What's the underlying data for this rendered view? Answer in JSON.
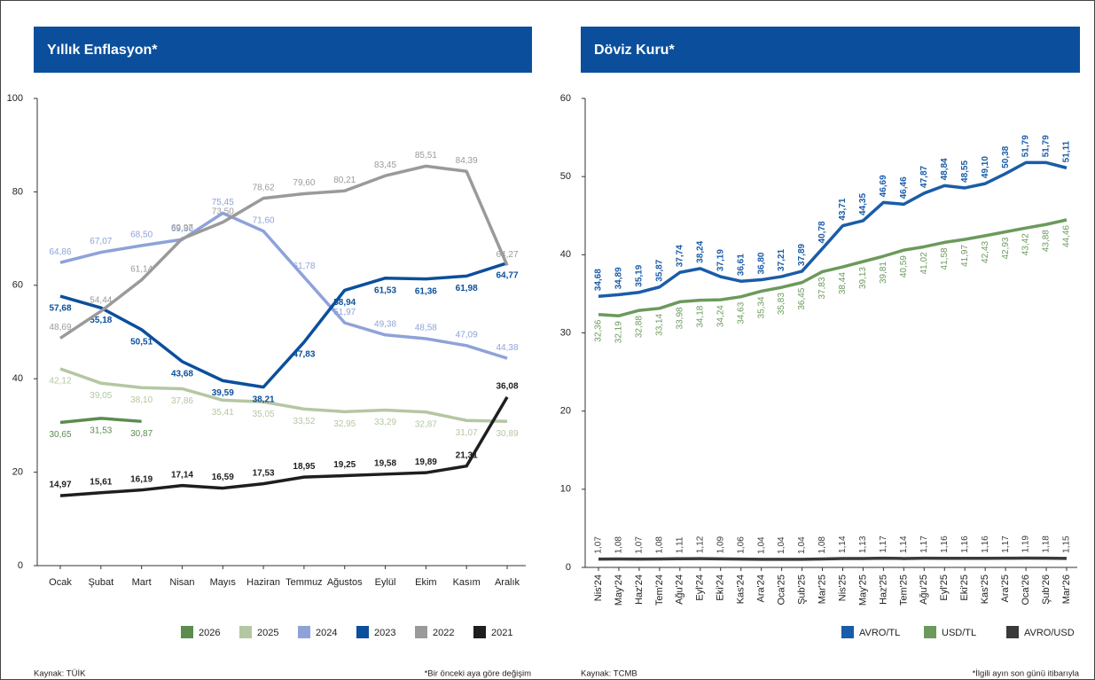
{
  "chart_data": [
    {
      "type": "line",
      "title": "Yıllık Enflasyon*",
      "categories": [
        "Ocak",
        "Şubat",
        "Mart",
        "Nisan",
        "Mayıs",
        "Haziran",
        "Temmuz",
        "Ağustos",
        "Eylül",
        "Ekim",
        "Kasım",
        "Aralık"
      ],
      "ylim": [
        0,
        100
      ],
      "yticks": [
        0,
        20,
        40,
        60,
        80,
        100
      ],
      "series": [
        {
          "name": "2026",
          "color": "#5b8c4e",
          "values": [
            30.65,
            31.53,
            30.87,
            null,
            null,
            null,
            null,
            null,
            null,
            null,
            null,
            null
          ],
          "value_labels": [
            "30,65",
            "31,53",
            "30,87",
            null,
            null,
            null,
            null,
            null,
            null,
            null,
            null,
            null
          ]
        },
        {
          "name": "2025",
          "color": "#b4c7a2",
          "values": [
            42.12,
            39.05,
            38.1,
            37.86,
            35.41,
            35.05,
            33.52,
            32.95,
            33.29,
            32.87,
            31.07,
            30.89
          ],
          "value_labels": [
            "42,12",
            "39,05",
            "38,10",
            "37,86",
            "35,41",
            "35,05",
            "33,52",
            "32,95",
            "33,29",
            "32,87",
            "31,07",
            "30,89"
          ]
        },
        {
          "name": "2024",
          "color": "#8ea2da",
          "values": [
            64.86,
            67.07,
            68.5,
            69.8,
            75.45,
            71.6,
            61.78,
            51.97,
            49.38,
            48.58,
            47.09,
            44.38
          ],
          "value_labels": [
            "64,86",
            "67,07",
            "68,50",
            "69,80",
            "75,45",
            "71,60",
            "61,78",
            "51,97",
            "49,38",
            "48,58",
            "47,09",
            "44,38"
          ]
        },
        {
          "name": "2023",
          "color": "#0b4f9c",
          "values": [
            57.68,
            55.18,
            50.51,
            43.68,
            39.59,
            38.21,
            47.83,
            58.94,
            61.53,
            61.36,
            61.98,
            64.77
          ],
          "value_labels": [
            "57,68",
            "55,18",
            "50,51",
            "43,68",
            "39,59",
            "38,21",
            "47,83",
            "58,94",
            "61,53",
            "61,36",
            "61,98",
            "64,77"
          ]
        },
        {
          "name": "2022",
          "color": "#9a9a9a",
          "values": [
            48.69,
            54.44,
            61.14,
            69.97,
            73.5,
            78.62,
            79.6,
            80.21,
            83.45,
            85.51,
            84.39,
            64.27
          ],
          "value_labels": [
            "48,69",
            "54,44",
            "61,14",
            "69,97",
            "73,50",
            "78,62",
            "79,60",
            "80,21",
            "83,45",
            "85,51",
            "84,39",
            "64,27"
          ]
        },
        {
          "name": "2021",
          "color": "#1e1e1e",
          "values": [
            14.97,
            15.61,
            16.19,
            17.14,
            16.59,
            17.53,
            18.95,
            19.25,
            19.58,
            19.89,
            21.31,
            36.08
          ],
          "value_labels": [
            "14,97",
            "15,61",
            "16,19",
            "17,14",
            "16,59",
            "17,53",
            "18,95",
            "19,25",
            "19,58",
            "19,89",
            "21,31",
            "36,08"
          ]
        }
      ],
      "source": "Kaynak: TÜİK",
      "footnote": "*Bir önceki aya göre değişim"
    },
    {
      "type": "line",
      "title": "Döviz Kuru*",
      "categories": [
        "Nis'24",
        "May'24",
        "Haz'24",
        "Tem'24",
        "Ağu'24",
        "Eyl'24",
        "Eki'24",
        "Kas'24",
        "Ara'24",
        "Oca'25",
        "Şub'25",
        "Mar'25",
        "Nis'25",
        "May'25",
        "Haz'25",
        "Tem'25",
        "Ağu'25",
        "Eyl'25",
        "Eki'25",
        "Kas'25",
        "Ara'25",
        "Oca'26",
        "Şub'26",
        "Mar'26"
      ],
      "ylim": [
        0,
        60
      ],
      "yticks": [
        0,
        10,
        20,
        30,
        40,
        50,
        60
      ],
      "series": [
        {
          "name": "AVRO/TL",
          "color": "#1a5ca8",
          "values": [
            34.68,
            34.89,
            35.19,
            35.87,
            37.74,
            38.24,
            37.19,
            36.61,
            36.8,
            37.21,
            37.89,
            40.78,
            43.71,
            44.35,
            46.69,
            46.46,
            47.87,
            48.84,
            48.55,
            49.1,
            50.38,
            51.79,
            51.79,
            51.11
          ],
          "value_labels": [
            "34,68",
            "34,89",
            "35,19",
            "35,87",
            "37,74",
            "38,24",
            "37,19",
            "36,61",
            "36,80",
            "37,21",
            "37,89",
            "40,78",
            "43,71",
            "44,35",
            "46,69",
            "46,46",
            "47,87",
            "48,84",
            "48,55",
            "49,10",
            "50,38",
            "51,79",
            "51,79",
            "51,11"
          ]
        },
        {
          "name": "USD/TL",
          "color": "#6b9a5b",
          "values": [
            32.36,
            32.19,
            32.88,
            33.14,
            33.98,
            34.18,
            34.24,
            34.63,
            35.34,
            35.83,
            36.45,
            37.83,
            38.44,
            39.13,
            39.81,
            40.59,
            41.02,
            41.58,
            41.97,
            42.43,
            42.93,
            43.42,
            43.88,
            44.46
          ],
          "value_labels": [
            "32,36",
            "32,19",
            "32,88",
            "33,14",
            "33,98",
            "34,18",
            "34,24",
            "34,63",
            "35,34",
            "35,83",
            "36,45",
            "37,83",
            "38,44",
            "39,13",
            "39,81",
            "40,59",
            "41,02",
            "41,58",
            "41,97",
            "42,43",
            "42,93",
            "43,42",
            "43,88",
            "44,46"
          ]
        },
        {
          "name": "AVRO/USD",
          "color": "#3a3a3a",
          "values": [
            1.07,
            1.08,
            1.07,
            1.08,
            1.11,
            1.12,
            1.09,
            1.06,
            1.04,
            1.04,
            1.04,
            1.08,
            1.14,
            1.13,
            1.17,
            1.14,
            1.17,
            1.16,
            1.16,
            1.16,
            1.17,
            1.19,
            1.18,
            1.15
          ],
          "value_labels": [
            "1,07",
            "1,08",
            "1,07",
            "1,08",
            "1,11",
            "1,12",
            "1,09",
            "1,06",
            "1,04",
            "1,04",
            "1,04",
            "1,08",
            "1,14",
            "1,13",
            "1,17",
            "1,14",
            "1,17",
            "1,16",
            "1,16",
            "1,16",
            "1,17",
            "1,19",
            "1,18",
            "1,15"
          ]
        }
      ],
      "source": "Kaynak: TCMB",
      "footnote": "*İlgili ayın son günü itibarıyla"
    }
  ]
}
